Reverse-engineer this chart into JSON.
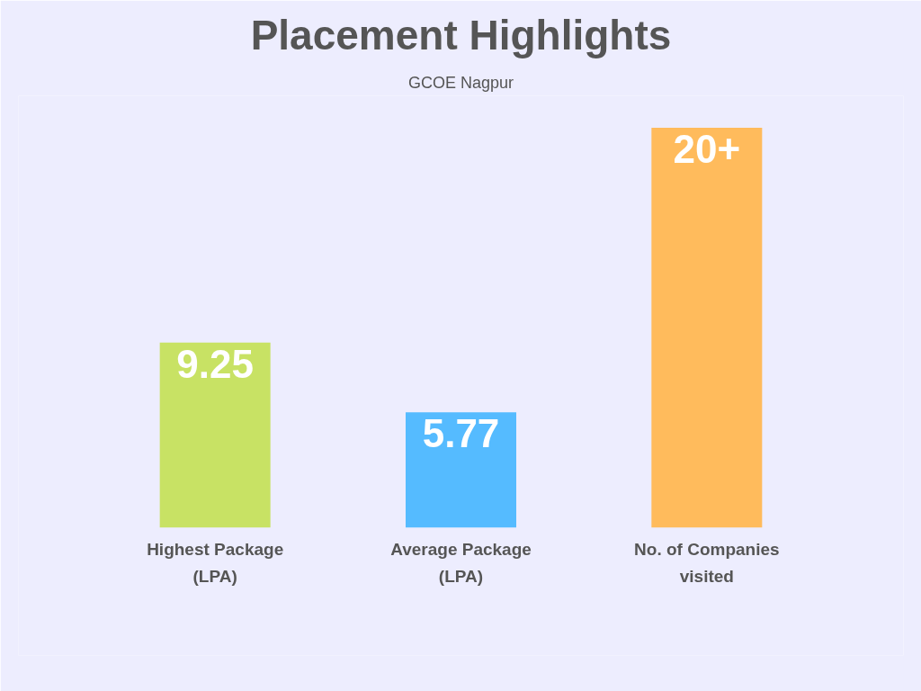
{
  "chart_data": {
    "type": "bar",
    "title": "Placement Highlights",
    "subtitle": "GCOE Nagpur",
    "categories": [
      "Highest Package (LPA)",
      "Average Package (LPA)",
      "No. of Companies visited"
    ],
    "values": [
      9.25,
      5.77,
      20
    ],
    "colors": [
      "#c8e264",
      "#55bbff",
      "#ffbb5c"
    ],
    "value_labels": [
      "9.25",
      "5.77",
      "20+"
    ],
    "grid": false
  }
}
